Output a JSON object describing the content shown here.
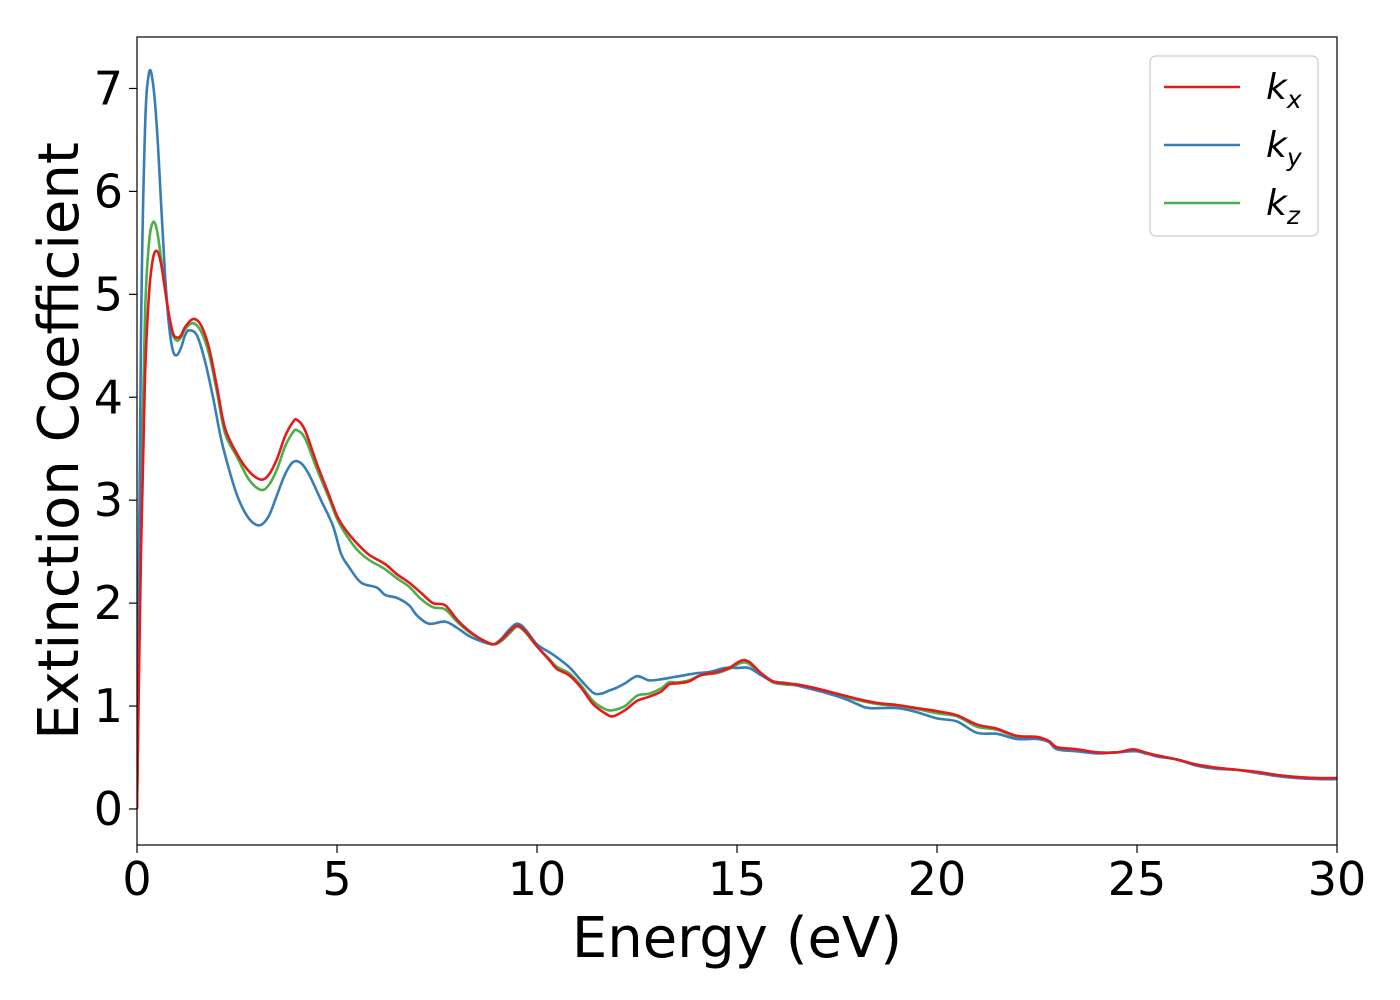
{
  "chart_data": {
    "type": "line",
    "xlabel": "Energy (eV)",
    "ylabel": "Extinction Coefficient",
    "xlim": [
      0,
      30
    ],
    "ylim": [
      -0.35,
      7.5
    ],
    "x_ticks": [
      0,
      5,
      10,
      15,
      20,
      25,
      30
    ],
    "y_ticks": [
      0,
      1,
      2,
      3,
      4,
      5,
      6,
      7
    ],
    "grid": false,
    "legend_position": "top-right",
    "series": [
      {
        "name": "k_x",
        "legend_base": "k",
        "legend_sub": "x",
        "color": "#e41a1c",
        "points": [
          [
            0,
            0
          ],
          [
            0.1,
            2.5
          ],
          [
            0.2,
            4.2
          ],
          [
            0.3,
            5.0
          ],
          [
            0.4,
            5.35
          ],
          [
            0.5,
            5.42
          ],
          [
            0.6,
            5.3
          ],
          [
            0.7,
            5.05
          ],
          [
            0.8,
            4.8
          ],
          [
            0.9,
            4.62
          ],
          [
            1.0,
            4.58
          ],
          [
            1.1,
            4.6
          ],
          [
            1.2,
            4.68
          ],
          [
            1.4,
            4.76
          ],
          [
            1.6,
            4.7
          ],
          [
            1.8,
            4.48
          ],
          [
            2.0,
            4.1
          ],
          [
            2.2,
            3.7
          ],
          [
            2.5,
            3.45
          ],
          [
            2.8,
            3.28
          ],
          [
            3.1,
            3.2
          ],
          [
            3.3,
            3.25
          ],
          [
            3.5,
            3.4
          ],
          [
            3.7,
            3.62
          ],
          [
            3.9,
            3.76
          ],
          [
            4.0,
            3.78
          ],
          [
            4.2,
            3.68
          ],
          [
            4.5,
            3.35
          ],
          [
            4.8,
            3.05
          ],
          [
            5.0,
            2.85
          ],
          [
            5.2,
            2.72
          ],
          [
            5.5,
            2.58
          ],
          [
            5.8,
            2.47
          ],
          [
            6.2,
            2.38
          ],
          [
            6.5,
            2.28
          ],
          [
            6.8,
            2.2
          ],
          [
            7.1,
            2.1
          ],
          [
            7.4,
            2.0
          ],
          [
            7.7,
            1.98
          ],
          [
            8.0,
            1.84
          ],
          [
            8.3,
            1.73
          ],
          [
            8.6,
            1.65
          ],
          [
            8.9,
            1.6
          ],
          [
            9.1,
            1.64
          ],
          [
            9.3,
            1.72
          ],
          [
            9.5,
            1.78
          ],
          [
            9.7,
            1.73
          ],
          [
            10.0,
            1.58
          ],
          [
            10.3,
            1.45
          ],
          [
            10.5,
            1.36
          ],
          [
            10.8,
            1.3
          ],
          [
            11.1,
            1.18
          ],
          [
            11.4,
            1.02
          ],
          [
            11.7,
            0.93
          ],
          [
            11.9,
            0.9
          ],
          [
            12.2,
            0.96
          ],
          [
            12.5,
            1.05
          ],
          [
            12.8,
            1.09
          ],
          [
            13.1,
            1.14
          ],
          [
            13.3,
            1.21
          ],
          [
            13.5,
            1.22
          ],
          [
            13.8,
            1.24
          ],
          [
            14.1,
            1.3
          ],
          [
            14.5,
            1.33
          ],
          [
            14.8,
            1.37
          ],
          [
            15.1,
            1.44
          ],
          [
            15.3,
            1.43
          ],
          [
            15.6,
            1.32
          ],
          [
            15.9,
            1.24
          ],
          [
            16.2,
            1.22
          ],
          [
            16.5,
            1.21
          ],
          [
            17.0,
            1.17
          ],
          [
            17.5,
            1.12
          ],
          [
            18.0,
            1.07
          ],
          [
            18.5,
            1.03
          ],
          [
            19.0,
            1.01
          ],
          [
            19.5,
            0.98
          ],
          [
            20.0,
            0.95
          ],
          [
            20.5,
            0.91
          ],
          [
            21.0,
            0.82
          ],
          [
            21.5,
            0.78
          ],
          [
            22.0,
            0.71
          ],
          [
            22.5,
            0.7
          ],
          [
            22.8,
            0.66
          ],
          [
            23.0,
            0.6
          ],
          [
            23.5,
            0.58
          ],
          [
            24.0,
            0.55
          ],
          [
            24.5,
            0.55
          ],
          [
            24.9,
            0.58
          ],
          [
            25.2,
            0.55
          ],
          [
            25.5,
            0.52
          ],
          [
            26.0,
            0.48
          ],
          [
            26.5,
            0.43
          ],
          [
            27.0,
            0.4
          ],
          [
            27.5,
            0.38
          ],
          [
            28.0,
            0.36
          ],
          [
            28.5,
            0.33
          ],
          [
            29.0,
            0.31
          ],
          [
            29.5,
            0.3
          ],
          [
            30.0,
            0.3
          ]
        ]
      },
      {
        "name": "k_y",
        "legend_base": "k",
        "legend_sub": "y",
        "color": "#377eb8",
        "points": [
          [
            0,
            0
          ],
          [
            0.1,
            4.6
          ],
          [
            0.2,
            6.6
          ],
          [
            0.3,
            7.15
          ],
          [
            0.4,
            7.05
          ],
          [
            0.5,
            6.6
          ],
          [
            0.6,
            5.9
          ],
          [
            0.7,
            5.2
          ],
          [
            0.8,
            4.7
          ],
          [
            0.9,
            4.45
          ],
          [
            1.0,
            4.41
          ],
          [
            1.1,
            4.48
          ],
          [
            1.2,
            4.6
          ],
          [
            1.3,
            4.65
          ],
          [
            1.5,
            4.6
          ],
          [
            1.7,
            4.35
          ],
          [
            1.9,
            4.0
          ],
          [
            2.1,
            3.6
          ],
          [
            2.3,
            3.3
          ],
          [
            2.5,
            3.05
          ],
          [
            2.7,
            2.88
          ],
          [
            2.9,
            2.78
          ],
          [
            3.1,
            2.76
          ],
          [
            3.3,
            2.85
          ],
          [
            3.5,
            3.05
          ],
          [
            3.7,
            3.25
          ],
          [
            3.9,
            3.37
          ],
          [
            4.1,
            3.36
          ],
          [
            4.3,
            3.25
          ],
          [
            4.6,
            3.0
          ],
          [
            4.9,
            2.75
          ],
          [
            5.1,
            2.48
          ],
          [
            5.3,
            2.35
          ],
          [
            5.6,
            2.2
          ],
          [
            6.0,
            2.15
          ],
          [
            6.2,
            2.08
          ],
          [
            6.5,
            2.05
          ],
          [
            6.8,
            1.98
          ],
          [
            7.0,
            1.88
          ],
          [
            7.3,
            1.8
          ],
          [
            7.7,
            1.82
          ],
          [
            8.0,
            1.76
          ],
          [
            8.3,
            1.68
          ],
          [
            8.6,
            1.63
          ],
          [
            8.9,
            1.6
          ],
          [
            9.1,
            1.65
          ],
          [
            9.3,
            1.74
          ],
          [
            9.5,
            1.8
          ],
          [
            9.7,
            1.75
          ],
          [
            10.0,
            1.6
          ],
          [
            10.4,
            1.5
          ],
          [
            10.8,
            1.38
          ],
          [
            11.1,
            1.25
          ],
          [
            11.4,
            1.13
          ],
          [
            11.6,
            1.12
          ],
          [
            11.8,
            1.15
          ],
          [
            12.0,
            1.18
          ],
          [
            12.2,
            1.22
          ],
          [
            12.5,
            1.29
          ],
          [
            12.8,
            1.25
          ],
          [
            13.1,
            1.26
          ],
          [
            13.4,
            1.28
          ],
          [
            13.7,
            1.3
          ],
          [
            14.0,
            1.32
          ],
          [
            14.3,
            1.33
          ],
          [
            14.7,
            1.37
          ],
          [
            15.0,
            1.37
          ],
          [
            15.3,
            1.37
          ],
          [
            15.6,
            1.3
          ],
          [
            15.9,
            1.24
          ],
          [
            16.3,
            1.22
          ],
          [
            16.7,
            1.18
          ],
          [
            17.2,
            1.13
          ],
          [
            17.7,
            1.07
          ],
          [
            18.0,
            1.02
          ],
          [
            18.3,
            0.98
          ],
          [
            19.0,
            0.98
          ],
          [
            19.5,
            0.94
          ],
          [
            20.0,
            0.88
          ],
          [
            20.5,
            0.85
          ],
          [
            21.0,
            0.74
          ],
          [
            21.5,
            0.73
          ],
          [
            22.0,
            0.68
          ],
          [
            22.5,
            0.68
          ],
          [
            22.8,
            0.65
          ],
          [
            23.0,
            0.58
          ],
          [
            23.5,
            0.56
          ],
          [
            24.0,
            0.54
          ],
          [
            24.5,
            0.55
          ],
          [
            25.0,
            0.56
          ],
          [
            25.5,
            0.51
          ],
          [
            26.0,
            0.48
          ],
          [
            26.5,
            0.42
          ],
          [
            27.0,
            0.39
          ],
          [
            27.5,
            0.38
          ],
          [
            28.0,
            0.35
          ],
          [
            28.5,
            0.32
          ],
          [
            29.0,
            0.3
          ],
          [
            29.5,
            0.29
          ],
          [
            30.0,
            0.29
          ]
        ]
      },
      {
        "name": "k_z",
        "legend_base": "k",
        "legend_sub": "z",
        "color": "#4daf4a",
        "points": [
          [
            0,
            0
          ],
          [
            0.1,
            3.0
          ],
          [
            0.2,
            4.8
          ],
          [
            0.3,
            5.5
          ],
          [
            0.4,
            5.7
          ],
          [
            0.5,
            5.62
          ],
          [
            0.6,
            5.35
          ],
          [
            0.7,
            5.05
          ],
          [
            0.8,
            4.78
          ],
          [
            0.9,
            4.6
          ],
          [
            1.0,
            4.55
          ],
          [
            1.1,
            4.58
          ],
          [
            1.2,
            4.66
          ],
          [
            1.4,
            4.72
          ],
          [
            1.6,
            4.64
          ],
          [
            1.8,
            4.42
          ],
          [
            2.0,
            4.05
          ],
          [
            2.2,
            3.65
          ],
          [
            2.5,
            3.42
          ],
          [
            2.8,
            3.2
          ],
          [
            3.1,
            3.1
          ],
          [
            3.3,
            3.15
          ],
          [
            3.5,
            3.3
          ],
          [
            3.7,
            3.52
          ],
          [
            3.9,
            3.66
          ],
          [
            4.0,
            3.68
          ],
          [
            4.2,
            3.6
          ],
          [
            4.5,
            3.3
          ],
          [
            4.8,
            3.02
          ],
          [
            5.0,
            2.82
          ],
          [
            5.2,
            2.68
          ],
          [
            5.5,
            2.52
          ],
          [
            5.8,
            2.42
          ],
          [
            6.2,
            2.33
          ],
          [
            6.5,
            2.24
          ],
          [
            6.8,
            2.16
          ],
          [
            7.1,
            2.04
          ],
          [
            7.4,
            1.96
          ],
          [
            7.7,
            1.94
          ],
          [
            8.0,
            1.82
          ],
          [
            8.3,
            1.72
          ],
          [
            8.6,
            1.65
          ],
          [
            8.9,
            1.6
          ],
          [
            9.1,
            1.63
          ],
          [
            9.3,
            1.7
          ],
          [
            9.5,
            1.77
          ],
          [
            9.7,
            1.72
          ],
          [
            10.0,
            1.58
          ],
          [
            10.3,
            1.46
          ],
          [
            10.5,
            1.38
          ],
          [
            10.8,
            1.32
          ],
          [
            11.1,
            1.2
          ],
          [
            11.4,
            1.05
          ],
          [
            11.7,
            0.97
          ],
          [
            11.9,
            0.96
          ],
          [
            12.2,
            1.0
          ],
          [
            12.5,
            1.1
          ],
          [
            12.8,
            1.12
          ],
          [
            13.1,
            1.17
          ],
          [
            13.3,
            1.23
          ],
          [
            13.5,
            1.23
          ],
          [
            13.8,
            1.25
          ],
          [
            14.1,
            1.3
          ],
          [
            14.5,
            1.32
          ],
          [
            14.8,
            1.36
          ],
          [
            15.1,
            1.42
          ],
          [
            15.3,
            1.41
          ],
          [
            15.6,
            1.31
          ],
          [
            15.9,
            1.23
          ],
          [
            16.2,
            1.21
          ],
          [
            16.5,
            1.2
          ],
          [
            17.0,
            1.16
          ],
          [
            17.5,
            1.11
          ],
          [
            18.0,
            1.06
          ],
          [
            18.5,
            1.02
          ],
          [
            19.0,
            1.0
          ],
          [
            19.5,
            0.97
          ],
          [
            20.0,
            0.93
          ],
          [
            20.5,
            0.9
          ],
          [
            21.0,
            0.8
          ],
          [
            21.5,
            0.77
          ],
          [
            22.0,
            0.7
          ],
          [
            22.5,
            0.69
          ],
          [
            22.8,
            0.65
          ],
          [
            23.0,
            0.59
          ],
          [
            23.5,
            0.57
          ],
          [
            24.0,
            0.55
          ],
          [
            24.5,
            0.55
          ],
          [
            24.9,
            0.57
          ],
          [
            25.2,
            0.54
          ],
          [
            25.5,
            0.52
          ],
          [
            26.0,
            0.48
          ],
          [
            26.5,
            0.43
          ],
          [
            27.0,
            0.4
          ],
          [
            27.5,
            0.38
          ],
          [
            28.0,
            0.36
          ],
          [
            28.5,
            0.33
          ],
          [
            29.0,
            0.31
          ],
          [
            29.5,
            0.3
          ],
          [
            30.0,
            0.3
          ]
        ]
      }
    ]
  }
}
